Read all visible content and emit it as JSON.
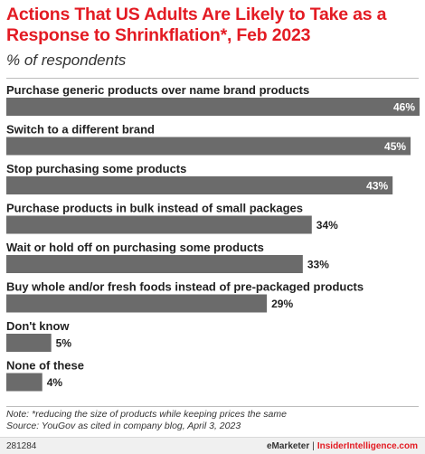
{
  "header": {
    "title": "Actions That US Adults Are Likely to Take as a Response to Shrinkflation*, Feb 2023",
    "subtitle": "% of respondents"
  },
  "chart_data": {
    "type": "bar",
    "orientation": "horizontal",
    "categories": [
      "Purchase generic products over name brand products",
      "Switch to a different brand",
      "Stop purchasing some products",
      "Purchase products in bulk instead of small packages",
      "Wait or hold off on purchasing some products",
      "Buy whole and/or fresh foods instead of pre-packaged products",
      "Don't know",
      "None of these"
    ],
    "values": [
      46,
      45,
      43,
      34,
      33,
      29,
      5,
      4
    ],
    "value_labels": [
      "46%",
      "45%",
      "43%",
      "34%",
      "33%",
      "29%",
      "5%",
      "4%"
    ],
    "xlim": [
      0,
      46
    ],
    "bar_color": "#6b6b6b",
    "label_inside_color": "#ffffff",
    "label_outside_color": "#222222"
  },
  "notes": {
    "note": "Note: *reducing the size of products while keeping prices the same",
    "source": "Source: YouGov as cited in company blog, April 3, 2023"
  },
  "footer": {
    "chart_id": "281284",
    "brand_left": "eMarketer",
    "separator": "|",
    "brand_right": "InsiderIntelligence.com"
  },
  "colors": {
    "title": "#e31b23",
    "bar": "#6b6b6b"
  }
}
